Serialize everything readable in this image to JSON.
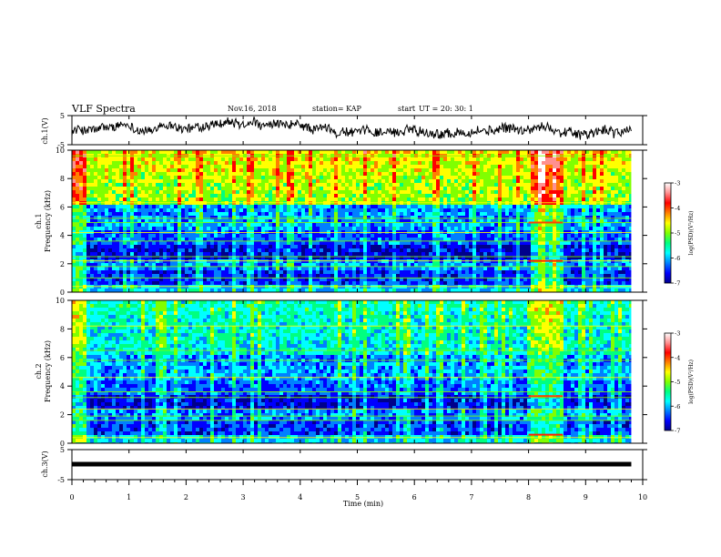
{
  "header": {
    "title": "VLF Spectra",
    "date": "Nov.16, 2018",
    "station": "station= KAP",
    "start_label": "start",
    "start_time": "UT =   20: 30: 1"
  },
  "chart_data": [
    {
      "type": "line",
      "name": "ch1-waveform",
      "ylabel": "ch.1(V)",
      "ylim": [
        -5,
        5
      ],
      "yticks": [
        "5",
        "-5"
      ],
      "xlim": [
        0,
        9.8
      ],
      "summary_level": 0.0,
      "color": "#000000"
    },
    {
      "type": "heatmap",
      "name": "ch1-spectrogram",
      "ylabel": "ch.1\nFrequency (kHz)",
      "ylim": [
        0,
        10
      ],
      "yticks": [
        "0",
        "2",
        "4",
        "6",
        "8",
        "10"
      ],
      "xlim": [
        0,
        9.8
      ],
      "colorbar": {
        "label": "log(PSD)(V²/Hz)",
        "ticks": [
          "-3",
          "-4",
          "-5",
          "-6",
          "-7"
        ],
        "range": [
          -7,
          -3
        ]
      },
      "active_band_min": [
        8.0,
        8.6
      ]
    },
    {
      "type": "heatmap",
      "name": "ch2-spectrogram",
      "ylabel": "ch.2\nFrequency (kHz)",
      "ylim": [
        0,
        10
      ],
      "yticks": [
        "0",
        "2",
        "4",
        "6",
        "8",
        "10"
      ],
      "xlim": [
        0,
        9.8
      ],
      "colorbar": {
        "label": "log(PSD)(V²/Hz)",
        "ticks": [
          "-3",
          "-4",
          "-5",
          "-6",
          "-7"
        ],
        "range": [
          -7,
          -3
        ]
      },
      "active_band_min": [
        8.0,
        8.6
      ]
    },
    {
      "type": "line",
      "name": "ch3-waveform",
      "ylabel": "ch.3(V)",
      "ylim": [
        -5,
        5
      ],
      "yticks": [
        "5",
        "-5"
      ],
      "xlim": [
        0,
        9.8
      ],
      "level": 0.0,
      "color": "#000000"
    }
  ],
  "x_axis": {
    "label": "Time  (min)",
    "range": [
      0,
      10
    ],
    "ticks": [
      "0",
      "1",
      "2",
      "3",
      "4",
      "5",
      "6",
      "7",
      "8",
      "9",
      "10"
    ]
  },
  "colormap": [
    "#00008b",
    "#0000ff",
    "#0080ff",
    "#00ffff",
    "#00ff80",
    "#80ff00",
    "#ffff00",
    "#ff8000",
    "#ff0000",
    "#ff9090",
    "#ffffff"
  ]
}
